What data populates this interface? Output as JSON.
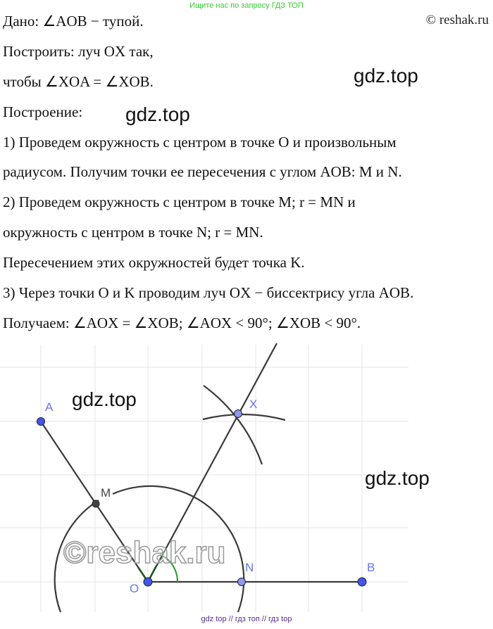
{
  "banner": "Ищите нас по запросу ГДЗ ТОП",
  "copyright": "© reshak.ru",
  "lines": [
    "Дано:  ∠AOB − тупой.",
    "Построить: луч OX так,",
    "чтобы ∠XOA = ∠XOB.",
    "Построение:",
    "1) Проведем окружность с центром в точке O и произвольным",
    "радиусом. Получим точки ее пересечения с углом AOB: M и N.",
    "2) Проведем окружность с центром в точке M;  r = MN и",
    "окружность с центром в точке N;  r = MN.",
    "Пересечением этих окружностей будет точка K.",
    "3) Через точки O и K проводим луч OX − биссектрису угла AOB.",
    "Получаем:  ∠AOX = ∠XOB;  ∠AOX < 90°;   ∠XOB < 90°."
  ],
  "watermarks": [
    "gdz.top",
    "gdz.top",
    "gdz.top",
    "gdz.top",
    "©reshak.ru"
  ],
  "figure": {
    "points": {
      "A": "A",
      "M": "M",
      "O": "O",
      "N": "N",
      "B": "B",
      "X": "X"
    },
    "colors": {
      "point": "#4455ee",
      "label": "#6677ee",
      "line": "#3a3a3a",
      "angle": "#2a9a2a",
      "grid": "#e4e4e4"
    }
  },
  "footer": "gdz top  //  гдз топ  //  гдз top"
}
